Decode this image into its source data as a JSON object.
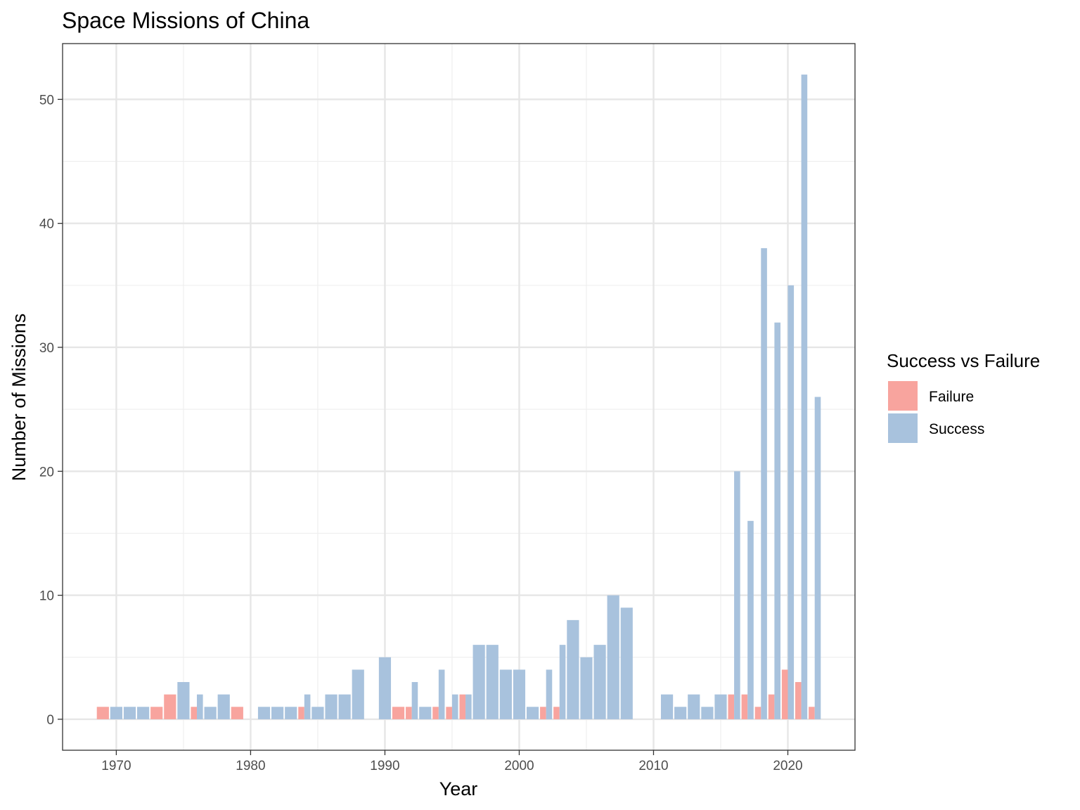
{
  "chart_data": {
    "type": "bar",
    "title": "Space Missions of China",
    "xlabel": "Year",
    "ylabel": "Number of Missions",
    "xlim": [
      1966,
      2025
    ],
    "ylim": [
      -2.5,
      54.5
    ],
    "x_ticks": [
      1970,
      1980,
      1990,
      2000,
      2010,
      2020
    ],
    "y_ticks": [
      0,
      10,
      20,
      30,
      40,
      50
    ],
    "grid": true,
    "legend": {
      "title": "Success vs Failure",
      "position": "right",
      "entries": [
        {
          "label": "Failure",
          "color": "#f8a49e"
        },
        {
          "label": "Success",
          "color": "#a8c2dd"
        }
      ]
    },
    "series": [
      {
        "name": "Failure",
        "color": "#f8a49e",
        "points": [
          {
            "x": 1969,
            "y": 1
          },
          {
            "x": 1973,
            "y": 1
          },
          {
            "x": 1974,
            "y": 2
          },
          {
            "x": 1976,
            "y": 1
          },
          {
            "x": 1979,
            "y": 1
          },
          {
            "x": 1984,
            "y": 1
          },
          {
            "x": 1991,
            "y": 1
          },
          {
            "x": 1992,
            "y": 1
          },
          {
            "x": 1994,
            "y": 1
          },
          {
            "x": 1995,
            "y": 1
          },
          {
            "x": 1996,
            "y": 2
          },
          {
            "x": 2002,
            "y": 1
          },
          {
            "x": 2003,
            "y": 1
          },
          {
            "x": 2016,
            "y": 2
          },
          {
            "x": 2017,
            "y": 2
          },
          {
            "x": 2018,
            "y": 1
          },
          {
            "x": 2019,
            "y": 2
          },
          {
            "x": 2020,
            "y": 4
          },
          {
            "x": 2021,
            "y": 3
          },
          {
            "x": 2022,
            "y": 1
          }
        ]
      },
      {
        "name": "Success",
        "color": "#a8c2dd",
        "points": [
          {
            "x": 1970,
            "y": 1
          },
          {
            "x": 1971,
            "y": 1
          },
          {
            "x": 1972,
            "y": 1
          },
          {
            "x": 1975,
            "y": 3
          },
          {
            "x": 1976,
            "y": 2
          },
          {
            "x": 1977,
            "y": 1
          },
          {
            "x": 1978,
            "y": 2
          },
          {
            "x": 1981,
            "y": 1
          },
          {
            "x": 1982,
            "y": 1
          },
          {
            "x": 1983,
            "y": 1
          },
          {
            "x": 1984,
            "y": 2
          },
          {
            "x": 1985,
            "y": 1
          },
          {
            "x": 1986,
            "y": 2
          },
          {
            "x": 1987,
            "y": 2
          },
          {
            "x": 1988,
            "y": 4
          },
          {
            "x": 1990,
            "y": 5
          },
          {
            "x": 1992,
            "y": 3
          },
          {
            "x": 1993,
            "y": 1
          },
          {
            "x": 1994,
            "y": 4
          },
          {
            "x": 1995,
            "y": 2
          },
          {
            "x": 1996,
            "y": 2
          },
          {
            "x": 1997,
            "y": 6
          },
          {
            "x": 1998,
            "y": 6
          },
          {
            "x": 1999,
            "y": 4
          },
          {
            "x": 2000,
            "y": 4
          },
          {
            "x": 2001,
            "y": 1
          },
          {
            "x": 2002,
            "y": 4
          },
          {
            "x": 2003,
            "y": 6
          },
          {
            "x": 2004,
            "y": 8
          },
          {
            "x": 2005,
            "y": 5
          },
          {
            "x": 2006,
            "y": 6
          },
          {
            "x": 2007,
            "y": 10
          },
          {
            "x": 2008,
            "y": 9
          },
          {
            "x": 2011,
            "y": 2
          },
          {
            "x": 2012,
            "y": 1
          },
          {
            "x": 2013,
            "y": 2
          },
          {
            "x": 2014,
            "y": 1
          },
          {
            "x": 2015,
            "y": 2
          },
          {
            "x": 2016,
            "y": 20
          },
          {
            "x": 2017,
            "y": 16
          },
          {
            "x": 2018,
            "y": 38
          },
          {
            "x": 2019,
            "y": 32
          },
          {
            "x": 2020,
            "y": 35
          },
          {
            "x": 2021,
            "y": 52
          },
          {
            "x": 2022,
            "y": 26
          }
        ]
      }
    ]
  }
}
